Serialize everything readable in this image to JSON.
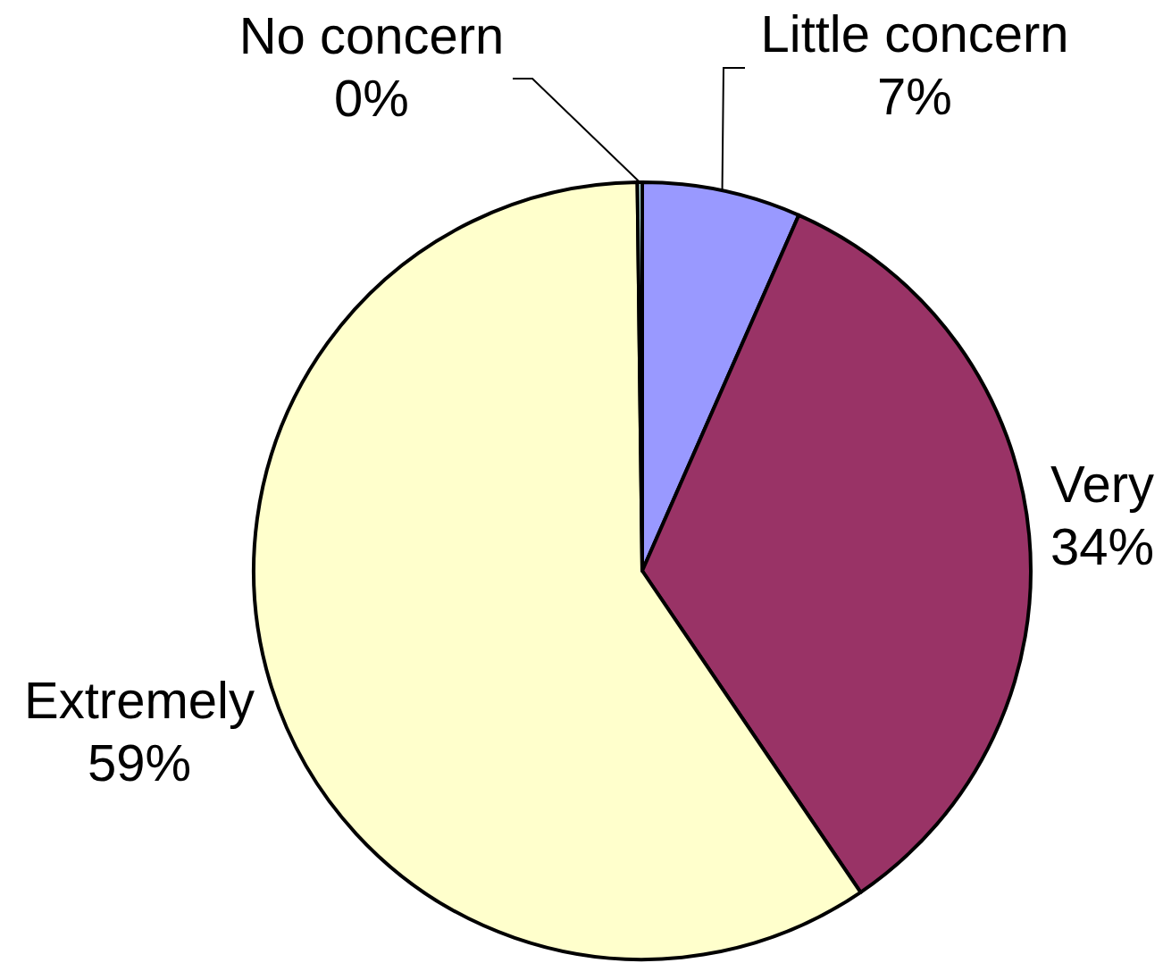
{
  "chart_data": {
    "type": "pie",
    "categories": [
      "Little concern",
      "Very",
      "Extremely",
      "No concern"
    ],
    "values": [
      6.6,
      33.9,
      59.3,
      0.2
    ],
    "value_labels": [
      "7%",
      "34%",
      "59%",
      "0%"
    ],
    "colors": [
      "#9999ff",
      "#993366",
      "#ffffcc",
      "#ccffff"
    ]
  }
}
